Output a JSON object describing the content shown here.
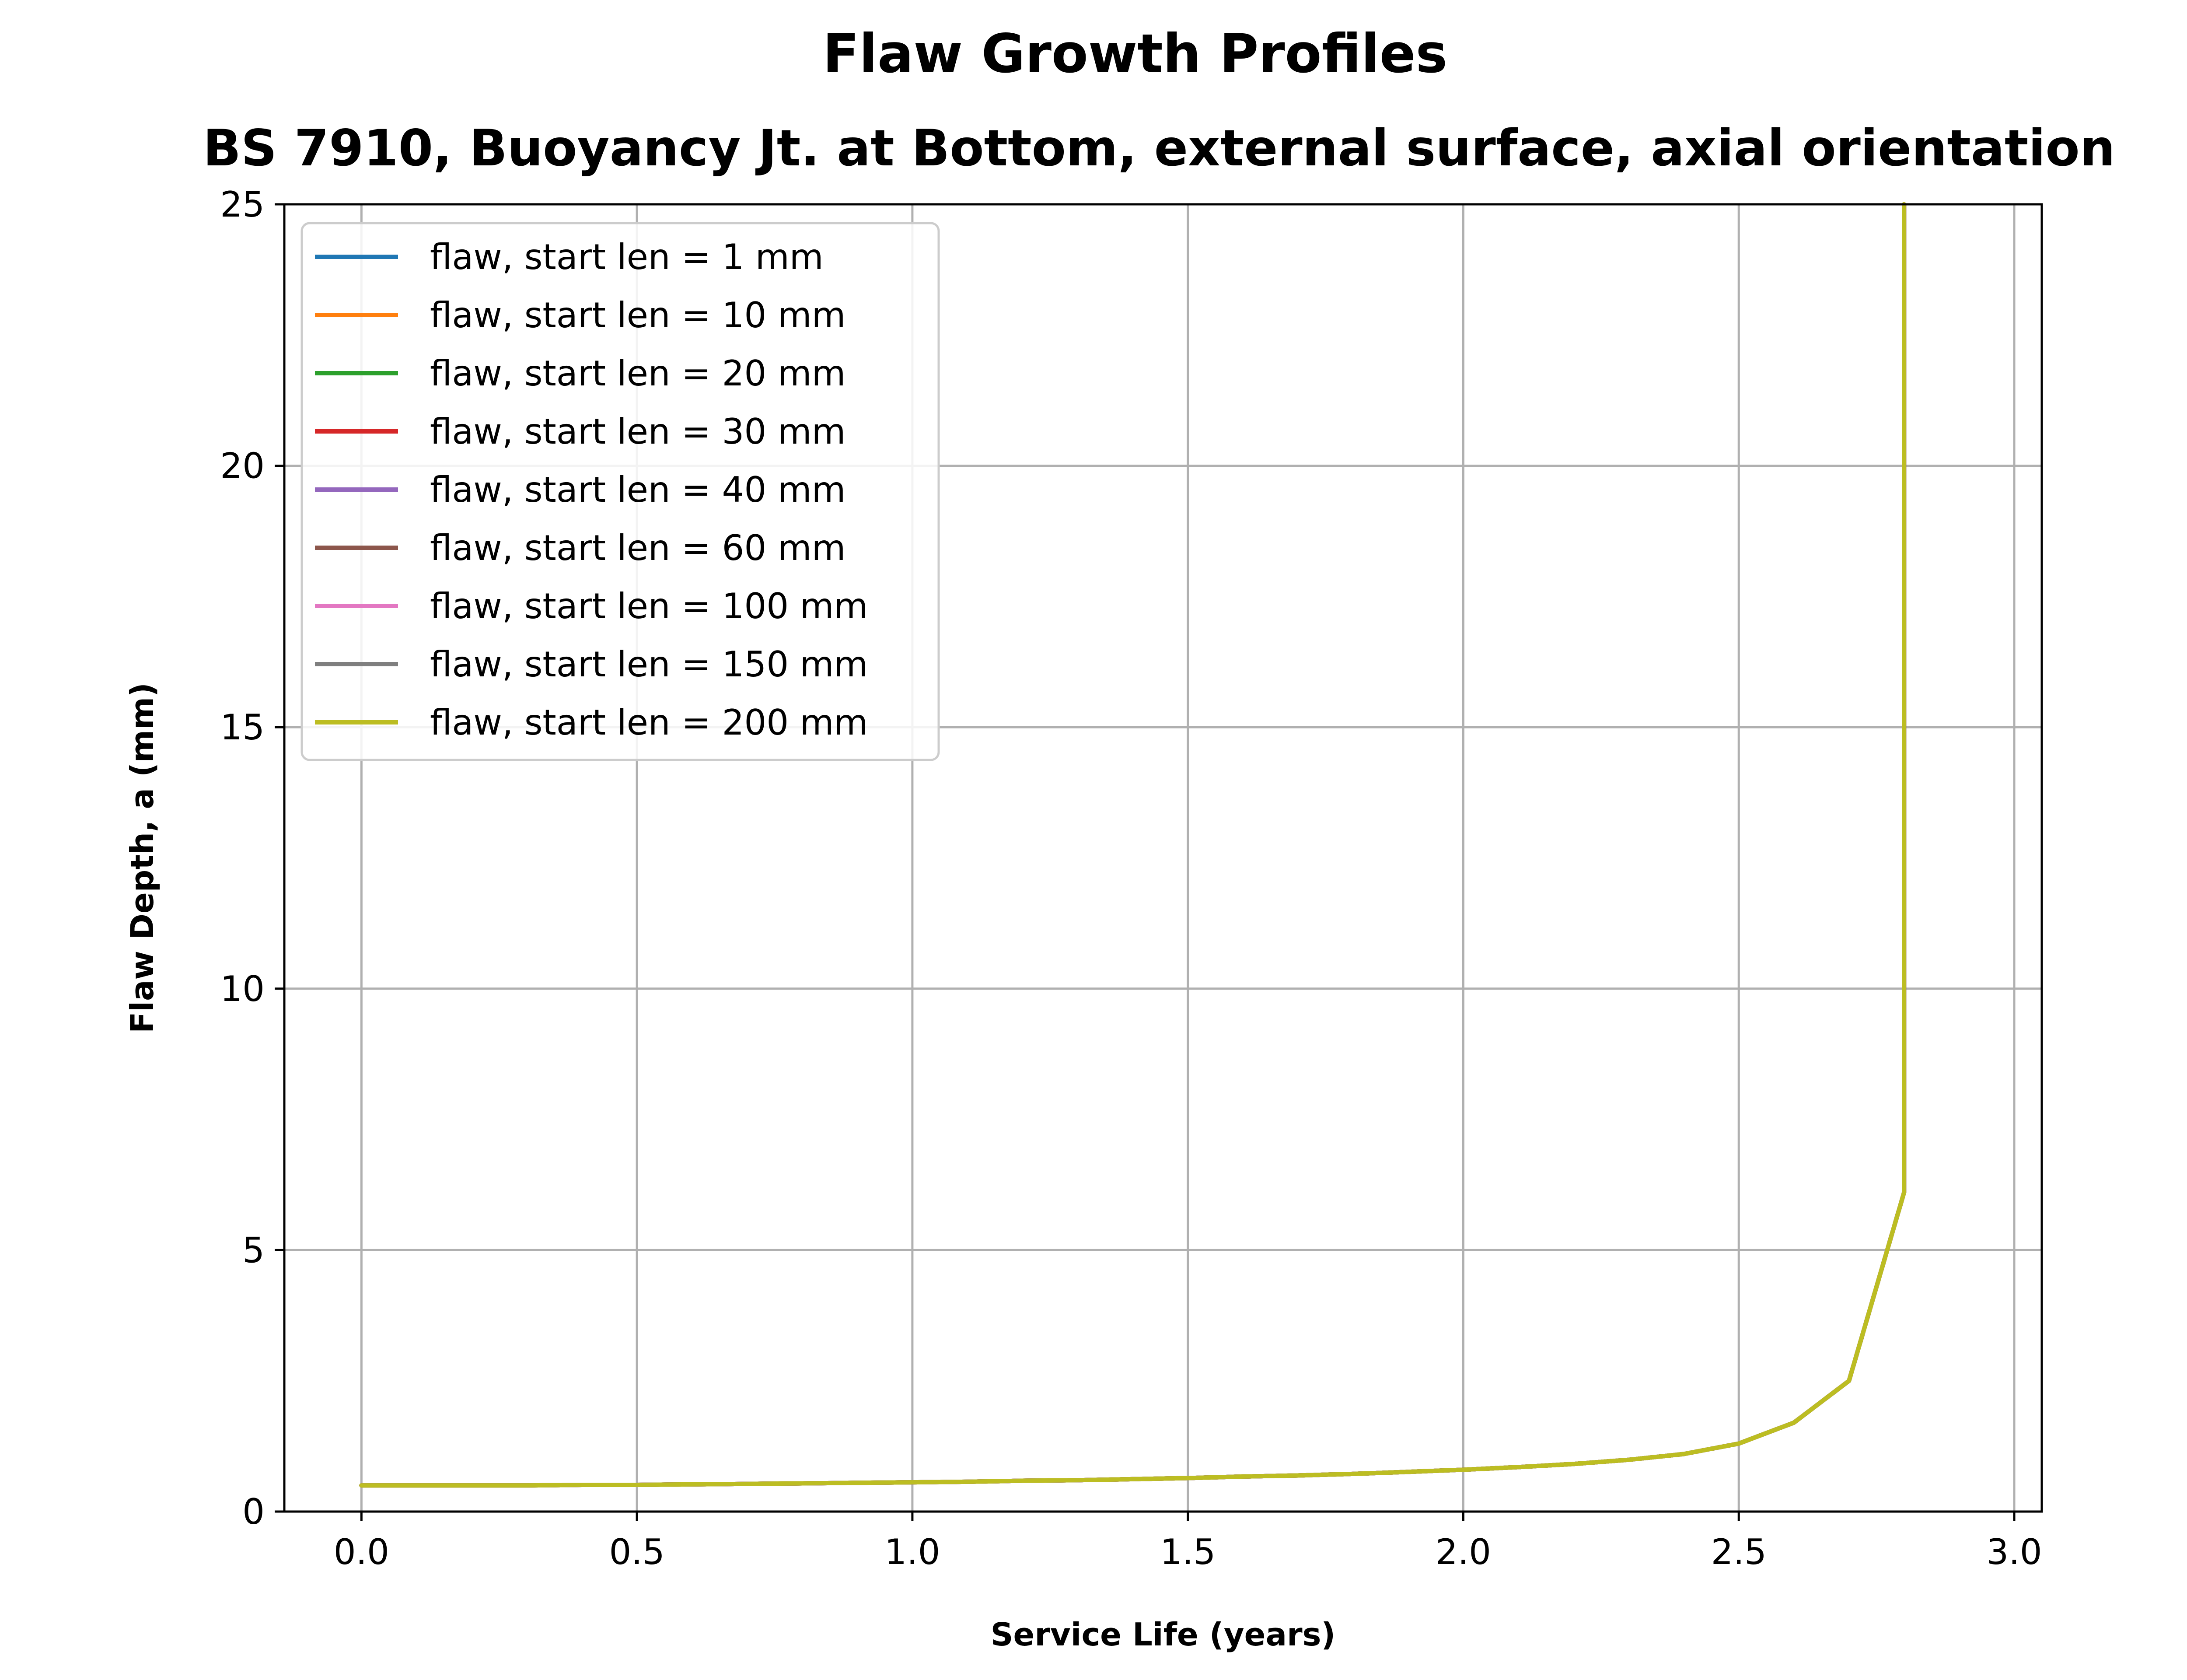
{
  "chart_data": {
    "type": "line",
    "title": "Flaw Growth Profiles",
    "subtitle": "BS 7910, Buoyancy Jt. at Bottom, external surface, axial orientation",
    "xlabel": "Service Life (years)",
    "ylabel": "Flaw Depth, a (mm)",
    "xlim": [
      -0.14,
      3.05
    ],
    "ylim": [
      0,
      25
    ],
    "xticks": [
      "0.0",
      "0.5",
      "1.0",
      "1.5",
      "2.0",
      "2.5",
      "3.0"
    ],
    "yticks": [
      "0",
      "5",
      "10",
      "15",
      "20",
      "25"
    ],
    "grid": true,
    "legend_position": "upper-left",
    "x": [
      0.0,
      0.1,
      0.2,
      0.3,
      0.4,
      0.5,
      0.6,
      0.7,
      0.8,
      0.9,
      1.0,
      1.1,
      1.2,
      1.3,
      1.4,
      1.5,
      1.6,
      1.7,
      1.8,
      1.9,
      2.0,
      2.1,
      2.2,
      2.3,
      2.4,
      2.5,
      2.6,
      2.7,
      2.8,
      2.8
    ],
    "series": [
      {
        "name": "flaw, start len = 1 mm",
        "color": "#1f77b4",
        "values": [
          0.5,
          0.5,
          0.5,
          0.5,
          0.51,
          0.51,
          0.52,
          0.53,
          0.54,
          0.55,
          0.56,
          0.57,
          0.59,
          0.6,
          0.62,
          0.64,
          0.67,
          0.69,
          0.72,
          0.76,
          0.8,
          0.85,
          0.91,
          0.99,
          1.1,
          1.3,
          1.7,
          2.5,
          6.1,
          25.0
        ]
      },
      {
        "name": "flaw, start len = 10 mm",
        "color": "#ff7f0e",
        "values": [
          0.5,
          0.5,
          0.5,
          0.5,
          0.51,
          0.51,
          0.52,
          0.53,
          0.54,
          0.55,
          0.56,
          0.57,
          0.59,
          0.6,
          0.62,
          0.64,
          0.67,
          0.69,
          0.72,
          0.76,
          0.8,
          0.85,
          0.91,
          0.99,
          1.1,
          1.3,
          1.7,
          2.5,
          6.1,
          25.0
        ]
      },
      {
        "name": "flaw, start len = 20 mm",
        "color": "#2ca02c",
        "values": [
          0.5,
          0.5,
          0.5,
          0.5,
          0.51,
          0.51,
          0.52,
          0.53,
          0.54,
          0.55,
          0.56,
          0.57,
          0.59,
          0.6,
          0.62,
          0.64,
          0.67,
          0.69,
          0.72,
          0.76,
          0.8,
          0.85,
          0.91,
          0.99,
          1.1,
          1.3,
          1.7,
          2.5,
          6.1,
          25.0
        ]
      },
      {
        "name": "flaw, start len = 30 mm",
        "color": "#d62728",
        "values": [
          0.5,
          0.5,
          0.5,
          0.5,
          0.51,
          0.51,
          0.52,
          0.53,
          0.54,
          0.55,
          0.56,
          0.57,
          0.59,
          0.6,
          0.62,
          0.64,
          0.67,
          0.69,
          0.72,
          0.76,
          0.8,
          0.85,
          0.91,
          0.99,
          1.1,
          1.3,
          1.7,
          2.5,
          6.1,
          25.0
        ]
      },
      {
        "name": "flaw, start len = 40 mm",
        "color": "#9467bd",
        "values": [
          0.5,
          0.5,
          0.5,
          0.5,
          0.51,
          0.51,
          0.52,
          0.53,
          0.54,
          0.55,
          0.56,
          0.57,
          0.59,
          0.6,
          0.62,
          0.64,
          0.67,
          0.69,
          0.72,
          0.76,
          0.8,
          0.85,
          0.91,
          0.99,
          1.1,
          1.3,
          1.7,
          2.5,
          6.1,
          25.0
        ]
      },
      {
        "name": "flaw, start len = 60 mm",
        "color": "#8c564b",
        "values": [
          0.5,
          0.5,
          0.5,
          0.5,
          0.51,
          0.51,
          0.52,
          0.53,
          0.54,
          0.55,
          0.56,
          0.57,
          0.59,
          0.6,
          0.62,
          0.64,
          0.67,
          0.69,
          0.72,
          0.76,
          0.8,
          0.85,
          0.91,
          0.99,
          1.1,
          1.3,
          1.7,
          2.5,
          6.1,
          25.0
        ]
      },
      {
        "name": "flaw, start len = 100 mm",
        "color": "#e377c2",
        "values": [
          0.5,
          0.5,
          0.5,
          0.5,
          0.51,
          0.51,
          0.52,
          0.53,
          0.54,
          0.55,
          0.56,
          0.57,
          0.59,
          0.6,
          0.62,
          0.64,
          0.67,
          0.69,
          0.72,
          0.76,
          0.8,
          0.85,
          0.91,
          0.99,
          1.1,
          1.3,
          1.7,
          2.5,
          6.1,
          25.0
        ]
      },
      {
        "name": "flaw, start len = 150 mm",
        "color": "#7f7f7f",
        "values": [
          0.5,
          0.5,
          0.5,
          0.5,
          0.51,
          0.51,
          0.52,
          0.53,
          0.54,
          0.55,
          0.56,
          0.57,
          0.59,
          0.6,
          0.62,
          0.64,
          0.67,
          0.69,
          0.72,
          0.76,
          0.8,
          0.85,
          0.91,
          0.99,
          1.1,
          1.3,
          1.7,
          2.5,
          6.1,
          25.0
        ]
      },
      {
        "name": "flaw, start len = 200 mm",
        "color": "#bcbd22",
        "values": [
          0.5,
          0.5,
          0.5,
          0.5,
          0.51,
          0.51,
          0.52,
          0.53,
          0.54,
          0.55,
          0.56,
          0.57,
          0.59,
          0.6,
          0.62,
          0.64,
          0.67,
          0.69,
          0.72,
          0.76,
          0.8,
          0.85,
          0.91,
          0.99,
          1.1,
          1.3,
          1.7,
          2.5,
          6.1,
          25.0
        ]
      }
    ]
  }
}
